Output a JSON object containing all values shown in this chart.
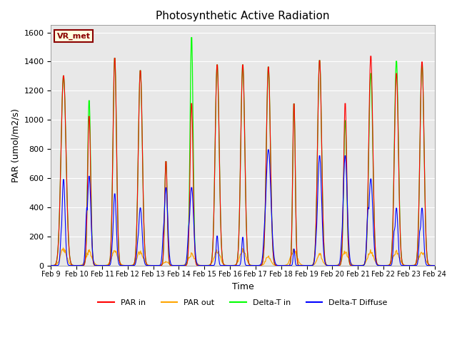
{
  "title": "Photosynthetic Active Radiation",
  "ylabel": "PAR (umol/m2/s)",
  "xlabel": "Time",
  "label_text": "VR_met",
  "ylim": [
    0,
    1650
  ],
  "background_color": "#e8e8e8",
  "xtick_labels": [
    "Feb 9",
    "Feb 10",
    "Feb 11",
    "Feb 12",
    "Feb 13",
    "Feb 14",
    "Feb 15",
    "Feb 16",
    "Feb 17",
    "Feb 18",
    "Feb 19",
    "Feb 20",
    "Feb 21",
    "Feb 22",
    "Feb 23",
    "Feb 24"
  ],
  "day_peaks_green": [
    1310,
    1150,
    1440,
    1350,
    730,
    1590,
    1390,
    1390,
    1375,
    1135,
    1420,
    1010,
    1330,
    1415,
    1400
  ],
  "day_peaks_red": [
    1310,
    1040,
    1440,
    1350,
    730,
    1130,
    1390,
    1390,
    1375,
    1135,
    1420,
    1130,
    1450,
    1330,
    1410
  ],
  "day_peaks_blue": [
    600,
    620,
    500,
    400,
    540,
    540,
    210,
    200,
    800,
    120,
    760,
    760,
    600,
    400,
    400
  ],
  "day_peaks_orange": [
    130,
    110,
    110,
    110,
    30,
    90,
    120,
    120,
    75,
    120,
    90,
    110,
    110,
    110,
    110
  ],
  "day_width_green": [
    0.1,
    0.06,
    0.07,
    0.08,
    0.05,
    0.06,
    0.08,
    0.08,
    0.08,
    0.05,
    0.08,
    0.06,
    0.08,
    0.08,
    0.08
  ],
  "day_width_red": [
    0.1,
    0.06,
    0.07,
    0.08,
    0.05,
    0.06,
    0.08,
    0.08,
    0.08,
    0.05,
    0.08,
    0.06,
    0.08,
    0.08,
    0.08
  ],
  "day_width_blue": [
    0.06,
    0.07,
    0.06,
    0.07,
    0.07,
    0.08,
    0.04,
    0.04,
    0.1,
    0.03,
    0.08,
    0.08,
    0.08,
    0.06,
    0.06
  ],
  "day_width_orange": [
    0.12,
    0.12,
    0.12,
    0.12,
    0.1,
    0.12,
    0.12,
    0.12,
    0.1,
    0.12,
    0.1,
    0.12,
    0.12,
    0.12,
    0.12
  ],
  "blue_secondary": [
    1,
    1,
    1,
    1,
    1,
    1,
    0,
    0,
    1,
    0,
    1,
    1,
    1,
    1,
    1
  ],
  "blue_sec_peaks": [
    250,
    400,
    200,
    200,
    280,
    300,
    0,
    0,
    400,
    0,
    300,
    300,
    400,
    250,
    250
  ],
  "blue_sec_offset": [
    -0.08,
    -0.09,
    -0.07,
    -0.08,
    -0.08,
    -0.09,
    0,
    0,
    -0.1,
    0,
    -0.09,
    -0.09,
    -0.1,
    -0.08,
    -0.08
  ]
}
